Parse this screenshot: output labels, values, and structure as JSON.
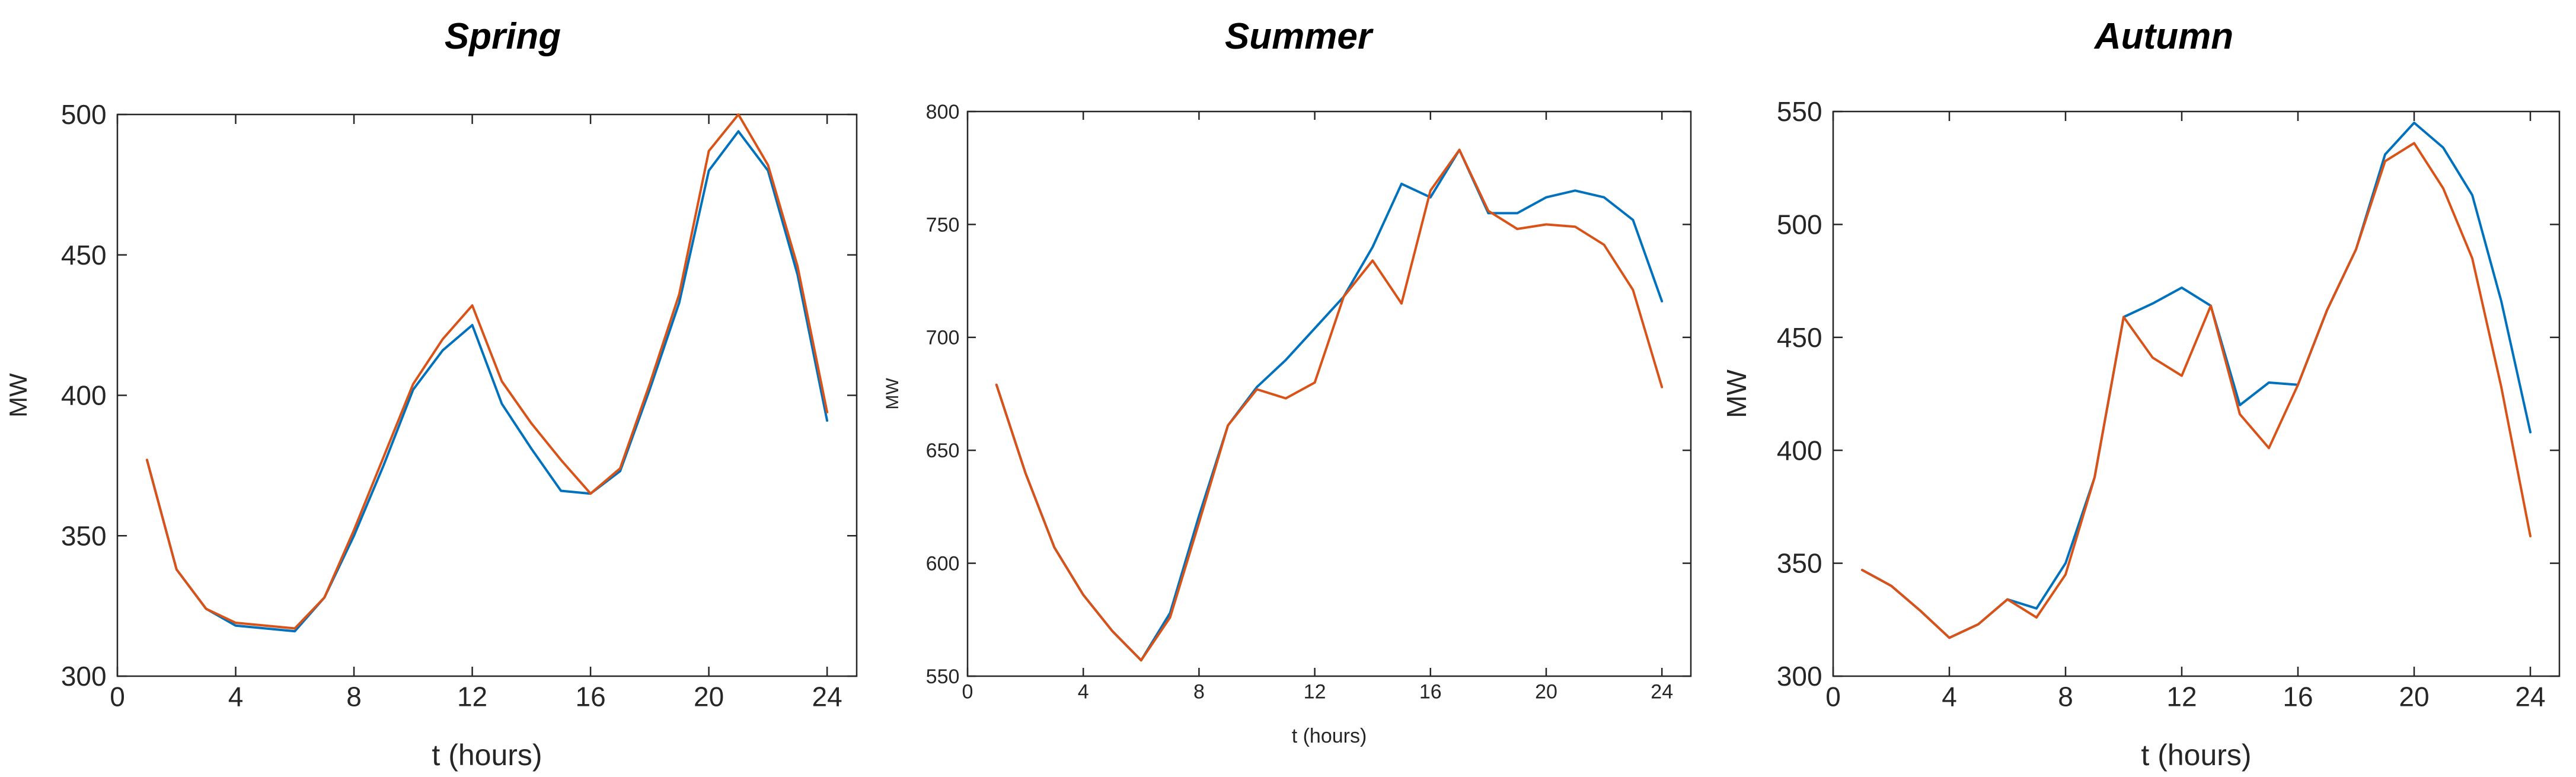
{
  "chart_data": [
    {
      "type": "line",
      "title": "Spring",
      "xlabel": "t (hours)",
      "ylabel": "MW",
      "xlim": [
        0,
        25
      ],
      "ylim": [
        300,
        500
      ],
      "xticks": [
        0,
        4,
        8,
        12,
        16,
        20,
        24
      ],
      "yticks": [
        300,
        350,
        400,
        450,
        500
      ],
      "grid": false,
      "colors": [
        "#0072BD",
        "#D95319"
      ],
      "x": [
        1,
        2,
        3,
        4,
        5,
        6,
        7,
        8,
        9,
        10,
        11,
        12,
        13,
        14,
        15,
        16,
        17,
        18,
        19,
        20,
        21,
        22,
        23,
        24
      ],
      "series": [
        {
          "values": [
            377,
            338,
            324,
            318,
            317,
            316,
            328,
            350,
            375,
            402,
            416,
            425,
            397,
            381,
            366,
            365,
            373,
            402,
            433,
            480,
            494,
            480,
            443,
            391
          ]
        },
        {
          "values": [
            377,
            338,
            324,
            319,
            318,
            317,
            328,
            352,
            378,
            404,
            420,
            432,
            405,
            390,
            377,
            365,
            374,
            404,
            436,
            487,
            500,
            482,
            446,
            394
          ]
        }
      ]
    },
    {
      "type": "line",
      "title": "Summer",
      "xlabel": "t (hours)",
      "ylabel": "MW",
      "xlim": [
        0,
        25
      ],
      "ylim": [
        550,
        800
      ],
      "xticks": [
        0,
        4,
        8,
        12,
        16,
        20,
        24
      ],
      "yticks": [
        550,
        600,
        650,
        700,
        750,
        800
      ],
      "grid": false,
      "colors": [
        "#0072BD",
        "#D95319"
      ],
      "x": [
        1,
        2,
        3,
        4,
        5,
        6,
        7,
        8,
        9,
        10,
        11,
        12,
        13,
        14,
        15,
        16,
        17,
        18,
        19,
        20,
        21,
        22,
        23,
        24
      ],
      "series": [
        {
          "values": [
            679,
            640,
            607,
            586,
            570,
            557,
            578,
            621,
            661,
            678,
            690,
            704,
            718,
            740,
            768,
            762,
            783,
            755,
            755,
            762,
            765,
            762,
            752,
            716
          ]
        },
        {
          "values": [
            679,
            640,
            607,
            586,
            570,
            557,
            576,
            618,
            661,
            677,
            673,
            680,
            718,
            734,
            715,
            765,
            783,
            756,
            748,
            750,
            749,
            741,
            721,
            678
          ]
        }
      ]
    },
    {
      "type": "line",
      "title": "Autumn",
      "xlabel": "t (hours)",
      "ylabel": "MW",
      "xlim": [
        0,
        25
      ],
      "ylim": [
        300,
        550
      ],
      "xticks": [
        0,
        4,
        8,
        12,
        16,
        20,
        24
      ],
      "yticks": [
        300,
        350,
        400,
        450,
        500,
        550
      ],
      "grid": false,
      "colors": [
        "#0072BD",
        "#D95319"
      ],
      "x": [
        1,
        2,
        3,
        4,
        5,
        6,
        7,
        8,
        9,
        10,
        11,
        12,
        13,
        14,
        15,
        16,
        17,
        18,
        19,
        20,
        21,
        22,
        23,
        24
      ],
      "series": [
        {
          "values": [
            347,
            340,
            329,
            317,
            323,
            334,
            330,
            350,
            388,
            459,
            465,
            472,
            464,
            420,
            430,
            429,
            462,
            489,
            531,
            545,
            534,
            513,
            466,
            408
          ]
        },
        {
          "values": [
            347,
            340,
            329,
            317,
            323,
            334,
            326,
            345,
            388,
            459,
            441,
            433,
            464,
            416,
            401,
            429,
            462,
            489,
            528,
            536,
            516,
            485,
            428,
            362
          ]
        }
      ]
    }
  ]
}
